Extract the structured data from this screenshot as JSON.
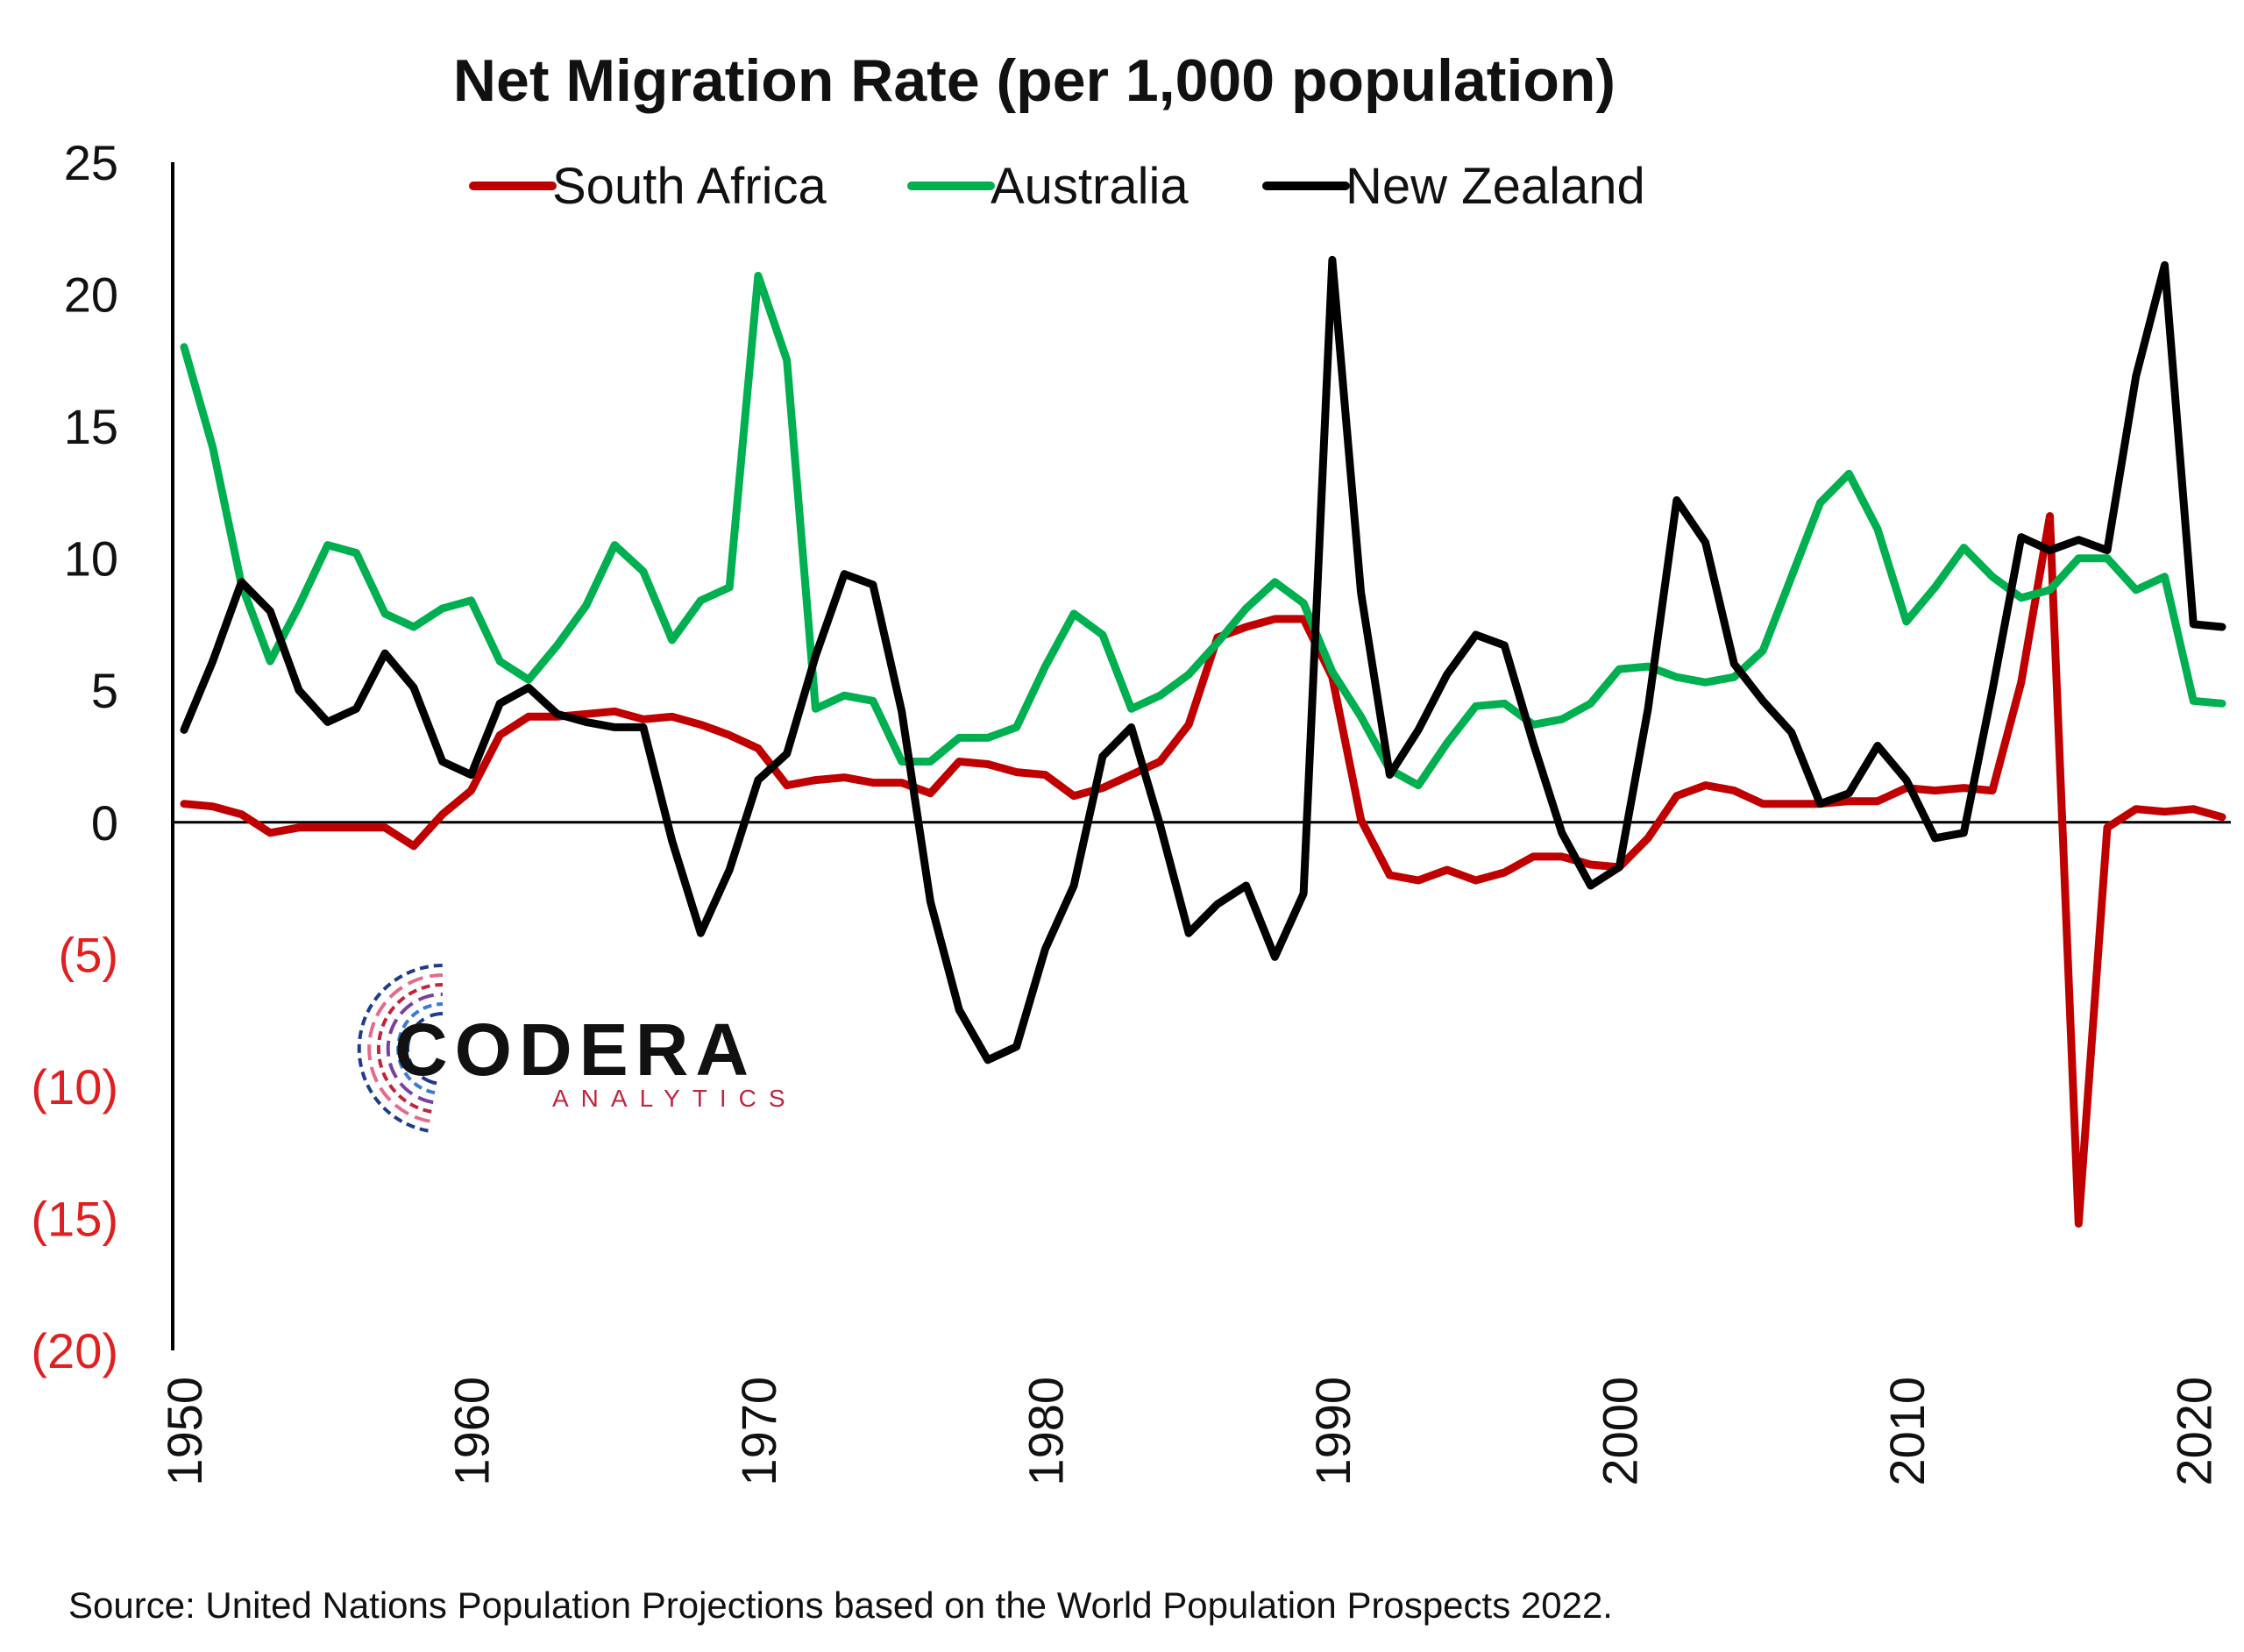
{
  "chart_data": {
    "type": "line",
    "title": "Net Migration Rate (per 1,000 population)",
    "xlabel": "",
    "ylabel": "",
    "xlim": [
      1950,
      2021
    ],
    "ylim": [
      -20,
      25
    ],
    "y_ticks": [
      25,
      20,
      15,
      10,
      5,
      0,
      -5,
      -10,
      -15,
      -20
    ],
    "y_tick_labels": [
      "25",
      "20",
      "15",
      "10",
      "5",
      "0",
      "(5)",
      "(10)",
      "(15)",
      "(20)"
    ],
    "x_ticks": [
      1950,
      1960,
      1970,
      1980,
      1990,
      2000,
      2010,
      2020
    ],
    "x_tick_labels": [
      "1950",
      "1960",
      "1970",
      "1980",
      "1990",
      "2000",
      "2010",
      "2020"
    ],
    "negative_label_color": "#e02020",
    "grid": false,
    "legend_position": "top",
    "x": [
      1950,
      1951,
      1952,
      1953,
      1954,
      1955,
      1956,
      1957,
      1958,
      1959,
      1960,
      1961,
      1962,
      1963,
      1964,
      1965,
      1966,
      1967,
      1968,
      1969,
      1970,
      1971,
      1972,
      1973,
      1974,
      1975,
      1976,
      1977,
      1978,
      1979,
      1980,
      1981,
      1982,
      1983,
      1984,
      1985,
      1986,
      1987,
      1988,
      1989,
      1990,
      1991,
      1992,
      1993,
      1994,
      1995,
      1996,
      1997,
      1998,
      1999,
      2000,
      2001,
      2002,
      2003,
      2004,
      2005,
      2006,
      2007,
      2008,
      2009,
      2010,
      2011,
      2012,
      2013,
      2014,
      2015,
      2016,
      2017,
      2018,
      2019,
      2020,
      2021
    ],
    "series": [
      {
        "name": "South Africa",
        "color": "#c00000",
        "values": [
          0.7,
          0.6,
          0.3,
          -0.4,
          -0.2,
          -0.2,
          -0.2,
          -0.2,
          -0.9,
          0.3,
          1.2,
          3.3,
          4.0,
          4.0,
          4.1,
          4.2,
          3.9,
          4.0,
          3.7,
          3.3,
          2.8,
          1.4,
          1.6,
          1.7,
          1.5,
          1.5,
          1.1,
          2.3,
          2.2,
          1.9,
          1.8,
          1.0,
          1.3,
          1.8,
          2.3,
          3.7,
          7.0,
          7.4,
          7.7,
          7.7,
          5.5,
          0.1,
          -2.0,
          -2.2,
          -1.8,
          -2.2,
          -1.9,
          -1.3,
          -1.3,
          -1.6,
          -1.7,
          -0.6,
          1.0,
          1.4,
          1.2,
          0.7,
          0.7,
          0.7,
          0.8,
          0.8,
          1.3,
          1.2,
          1.3,
          1.2,
          5.3,
          11.6,
          -15.2,
          -0.2,
          0.5,
          0.4,
          0.5,
          0.2
        ]
      },
      {
        "name": "Australia",
        "color": "#00b050",
        "values": [
          18.0,
          14.2,
          9.0,
          6.1,
          8.2,
          10.5,
          10.2,
          7.9,
          7.4,
          8.1,
          8.4,
          6.1,
          5.4,
          6.7,
          8.2,
          10.5,
          9.5,
          6.9,
          8.4,
          8.9,
          20.7,
          17.5,
          4.3,
          4.8,
          4.6,
          2.3,
          2.3,
          3.2,
          3.2,
          3.6,
          5.9,
          7.9,
          7.1,
          4.3,
          4.8,
          5.6,
          6.8,
          8.1,
          9.1,
          8.3,
          5.7,
          4.0,
          2.0,
          1.4,
          3.0,
          4.4,
          4.5,
          3.7,
          3.9,
          4.5,
          5.8,
          5.9,
          5.5,
          5.3,
          5.5,
          6.5,
          9.3,
          12.1,
          13.2,
          11.1,
          7.6,
          8.9,
          10.4,
          9.3,
          8.5,
          8.8,
          10.0,
          10.0,
          8.8,
          9.3,
          4.6,
          4.5
        ]
      },
      {
        "name": "New Zealand",
        "color": "#000000",
        "values": [
          3.5,
          6.1,
          9.1,
          8.0,
          5.0,
          3.8,
          4.3,
          6.4,
          5.1,
          2.3,
          1.8,
          4.5,
          5.1,
          4.1,
          3.8,
          3.6,
          3.6,
          -0.7,
          -4.2,
          -1.8,
          1.6,
          2.6,
          6.3,
          9.4,
          9.0,
          4.2,
          -3.0,
          -7.1,
          -9.0,
          -8.5,
          -4.8,
          -2.4,
          2.5,
          3.6,
          -0.1,
          -4.2,
          -3.1,
          -2.4,
          -5.1,
          -2.7,
          21.3,
          8.7,
          1.8,
          3.5,
          5.6,
          7.1,
          6.7,
          3.0,
          -0.4,
          -2.4,
          -1.7,
          4.3,
          12.2,
          10.6,
          6.0,
          4.6,
          3.4,
          0.7,
          1.1,
          2.9,
          1.6,
          -0.6,
          -0.4,
          5.0,
          10.8,
          10.3,
          10.7,
          10.3,
          16.9,
          21.1,
          7.5,
          7.4
        ]
      }
    ],
    "source": "Source: United Nations Population Projections based on the World Population Prospects 2022."
  },
  "logo": {
    "name": "CODERA",
    "sub": "ANALYTICS",
    "colors": [
      "#1f3c88",
      "#3a7bd5",
      "#7a3fa0",
      "#c0253c",
      "#e66a8a"
    ]
  }
}
